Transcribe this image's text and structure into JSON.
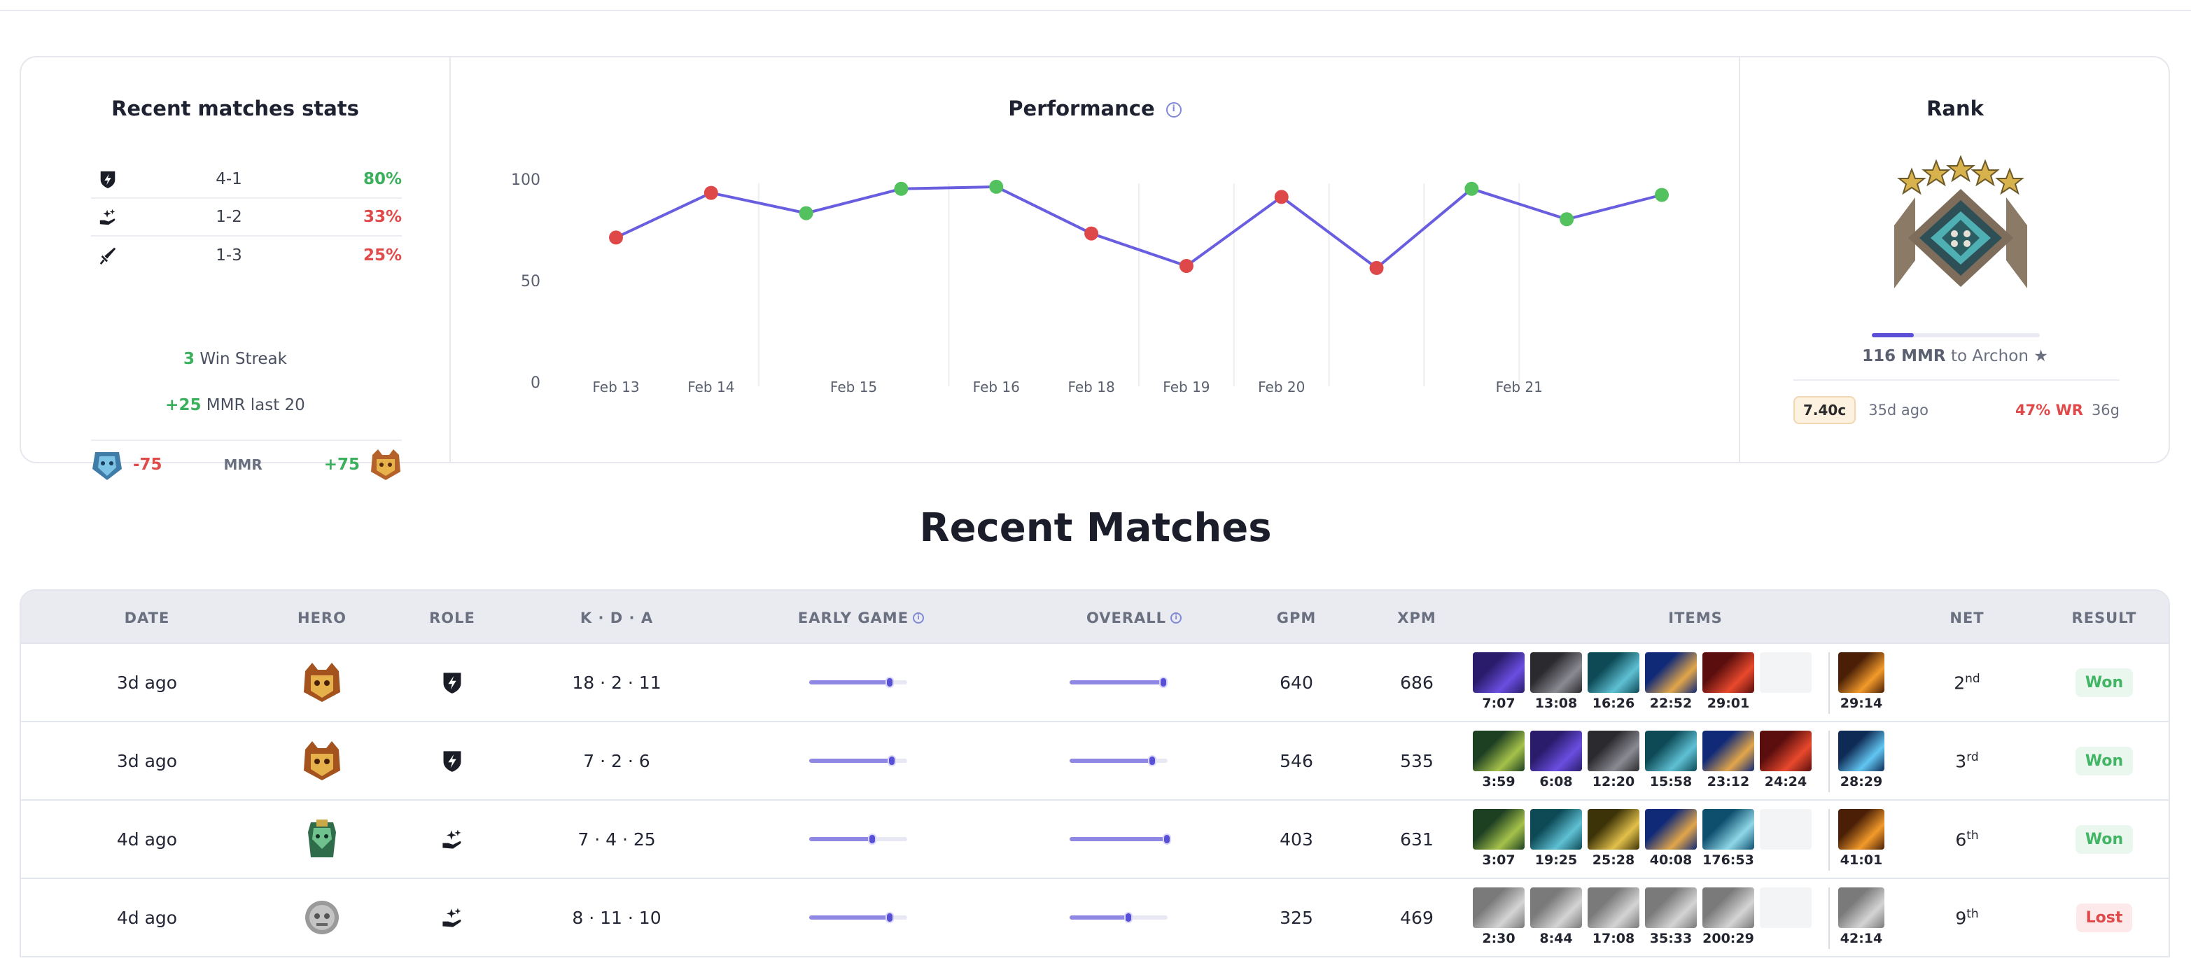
{
  "stats": {
    "title": "Recent matches stats",
    "roles": [
      {
        "icon": "carry-role-icon",
        "record": "4-1",
        "pct": "80%",
        "pct_color": "green"
      },
      {
        "icon": "support-role-icon",
        "record": "1-2",
        "pct": "33%",
        "pct_color": "red"
      },
      {
        "icon": "offlane-role-icon",
        "record": "1-3",
        "pct": "25%",
        "pct_color": "red"
      }
    ],
    "streak_count": "3",
    "streak_text": "Win Streak",
    "mmr_change": "+25",
    "mmr_text": "MMR last 20",
    "mmr_loss": "-75",
    "mmr_label": "MMR",
    "mmr_gain": "+75"
  },
  "performance": {
    "title": "Performance",
    "y_ticks": [
      "100",
      "50",
      "0"
    ],
    "x_labels": [
      "Feb 13",
      "Feb 14",
      "Feb 15",
      "Feb 16",
      "Feb 18",
      "Feb 19",
      "Feb 20",
      "Feb 21"
    ]
  },
  "chart_data": {
    "type": "line",
    "title": "Performance",
    "xlabel": "",
    "ylabel": "",
    "ylim": [
      0,
      100
    ],
    "grid": "vertical",
    "series": [
      {
        "values": [
          74,
          96,
          86,
          98,
          99,
          76,
          60,
          94,
          59,
          98,
          83,
          95
        ],
        "results": [
          "lost",
          "lost",
          "won",
          "won",
          "won",
          "lost",
          "lost",
          "lost",
          "lost",
          "won",
          "won",
          "won"
        ]
      }
    ],
    "colors": {
      "line": "#6a5ee0",
      "won": "#52c15e",
      "lost": "#df4848"
    }
  },
  "rank": {
    "title": "Rank",
    "progress": 0.25,
    "mmr_needed": "116 MMR",
    "to_text": "to Archon",
    "star": "★",
    "patch": "7.40c",
    "ago": "35d ago",
    "wr": "47% WR",
    "games": "36g"
  },
  "matches": {
    "title": "Recent Matches",
    "headers": {
      "date": "DATE",
      "hero": "HERO",
      "role": "ROLE",
      "kda": "K · D · A",
      "early": "EARLY GAME",
      "overall": "OVERALL",
      "gpm": "GPM",
      "xpm": "XPM",
      "items": "ITEMS",
      "net": "NET",
      "result": "RESULT"
    },
    "rows": [
      {
        "date": "3d ago",
        "hero": "hero-bristleback",
        "role": "carry-role-icon",
        "kda": "18 · 2 · 11",
        "early": 0.82,
        "overall": 0.96,
        "gpm": "640",
        "xpm": "686",
        "items": [
          {
            "img": "item-purple",
            "time": "7:07"
          },
          {
            "img": "item-dark",
            "time": "13:08"
          },
          {
            "img": "item-teal",
            "time": "16:26"
          },
          {
            "img": "item-blue",
            "time": "22:52"
          },
          {
            "img": "item-red",
            "time": "29:01"
          },
          {
            "img": "empty",
            "time": ""
          }
        ],
        "neutral": {
          "img": "item-orange",
          "time": "29:14"
        },
        "net": "2",
        "net_suffix": "nd",
        "result": "Won",
        "result_type": "won"
      },
      {
        "date": "3d ago",
        "hero": "hero-bristleback",
        "role": "carry-role-icon",
        "kda": "7 · 2 · 6",
        "early": 0.84,
        "overall": 0.84,
        "gpm": "546",
        "xpm": "535",
        "items": [
          {
            "img": "item-green",
            "time": "3:59"
          },
          {
            "img": "item-purple",
            "time": "6:08"
          },
          {
            "img": "item-dark",
            "time": "12:20"
          },
          {
            "img": "item-teal",
            "time": "15:58"
          },
          {
            "img": "item-blue",
            "time": "23:12"
          },
          {
            "img": "item-red",
            "time": "24:24"
          }
        ],
        "neutral": {
          "img": "item-cyan",
          "time": "28:29"
        },
        "net": "3",
        "net_suffix": "rd",
        "result": "Won",
        "result_type": "won"
      },
      {
        "date": "4d ago",
        "hero": "hero-green",
        "role": "support-role-icon",
        "kda": "7 · 4 · 25",
        "early": 0.64,
        "overall": 0.99,
        "gpm": "403",
        "xpm": "631",
        "items": [
          {
            "img": "item-green",
            "time": "3:07"
          },
          {
            "img": "item-teal",
            "time": "19:25"
          },
          {
            "img": "item-gold",
            "time": "25:28"
          },
          {
            "img": "item-blue",
            "time": "40:08"
          },
          {
            "img": "item-sky",
            "time": "176:53"
          },
          {
            "img": "empty",
            "time": ""
          }
        ],
        "neutral": {
          "img": "item-orange",
          "time": "41:01"
        },
        "net": "6",
        "net_suffix": "th",
        "result": "Won",
        "result_type": "won"
      },
      {
        "date": "4d ago",
        "hero": "hero-gray",
        "role": "support-role-icon",
        "kda": "8 · 11 · 10",
        "early": 0.82,
        "overall": 0.6,
        "gpm": "325",
        "xpm": "469",
        "items": [
          {
            "img": "item-gray",
            "time": "2:30"
          },
          {
            "img": "item-gray",
            "time": "8:44"
          },
          {
            "img": "item-gray",
            "time": "17:08"
          },
          {
            "img": "item-gray",
            "time": "35:33"
          },
          {
            "img": "item-gray",
            "time": "200:29"
          },
          {
            "img": "empty",
            "time": ""
          }
        ],
        "neutral": {
          "img": "item-gray",
          "time": "42:14"
        },
        "net": "9",
        "net_suffix": "th",
        "result": "Lost",
        "result_type": "lost"
      }
    ]
  }
}
